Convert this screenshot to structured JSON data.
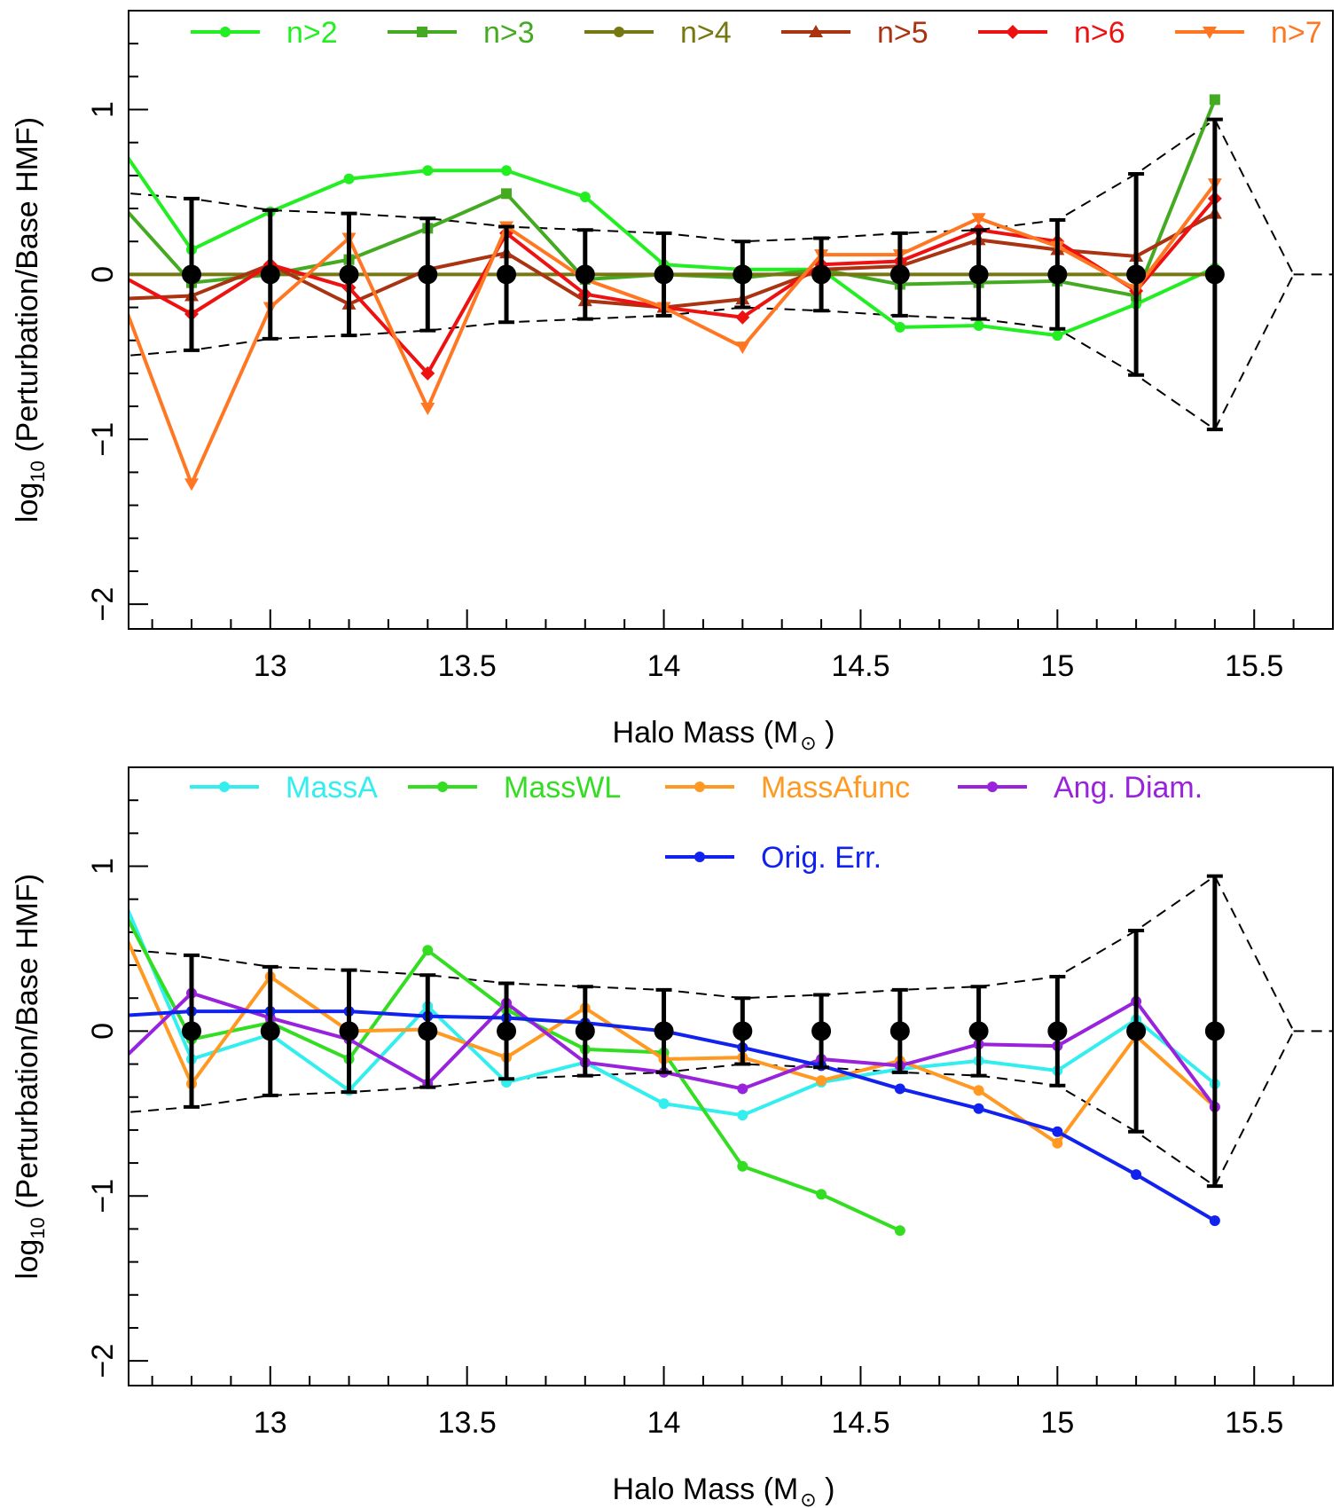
{
  "page": {
    "width": 1511,
    "height": 1700
  },
  "colors": {
    "reference": "#000000",
    "envelope": "#000000"
  },
  "chart_data": [
    {
      "type": "line",
      "id": "top",
      "xlabel": "Halo Mass (M",
      "xlabel_suffix": " )",
      "ylabel": "log",
      "ylabel_sub": "10",
      "ylabel_rest": " (Perturbation/Base HMF)",
      "xlim": [
        12.64,
        15.7
      ],
      "ylim": [
        -2.15,
        1.6
      ],
      "xticks": [
        13,
        13.5,
        14,
        14.5,
        15,
        15.5
      ],
      "xtick_labels": [
        "13",
        "13.5",
        "14",
        "14.5",
        "15",
        "15.5"
      ],
      "yticks": [
        -2,
        -1,
        0,
        1
      ],
      "ytick_labels": [
        "−2",
        "−1",
        "0",
        "1"
      ],
      "reference": {
        "x": [
          12.8,
          13.0,
          13.2,
          13.4,
          13.6,
          13.8,
          14.0,
          14.2,
          14.4,
          14.6,
          14.8,
          15.0,
          15.2,
          15.4
        ],
        "y": [
          0,
          0,
          0,
          0,
          0,
          0,
          0,
          0,
          0,
          0,
          0,
          0,
          0,
          0
        ],
        "err": [
          0.46,
          0.39,
          0.37,
          0.34,
          0.29,
          0.27,
          0.25,
          0.2,
          0.22,
          0.25,
          0.27,
          0.33,
          0.61,
          0.94
        ]
      },
      "envelope": {
        "x": [
          12.6,
          12.8,
          13.0,
          13.2,
          13.4,
          13.6,
          13.8,
          14.0,
          14.2,
          14.4,
          14.6,
          14.8,
          15.0,
          15.2,
          15.4,
          15.6
        ],
        "upper": [
          0.5,
          0.46,
          0.39,
          0.37,
          0.34,
          0.29,
          0.27,
          0.25,
          0.2,
          0.22,
          0.25,
          0.27,
          0.33,
          0.61,
          0.94,
          0.0
        ],
        "lower": [
          -0.5,
          -0.46,
          -0.39,
          -0.37,
          -0.34,
          -0.29,
          -0.27,
          -0.25,
          -0.2,
          -0.22,
          -0.25,
          -0.27,
          -0.33,
          -0.61,
          -0.94,
          0.0
        ],
        "tail_x": [
          15.6,
          15.7
        ],
        "tail_y": [
          0.0,
          0.0
        ]
      },
      "series": [
        {
          "name": "n>2",
          "color": "#22EE22",
          "marker": "circle",
          "x": [
            12.6,
            12.8,
            13.0,
            13.2,
            13.4,
            13.6,
            13.8,
            14.0,
            14.2,
            14.4,
            14.6,
            14.8,
            15.0,
            15.2,
            15.4
          ],
          "y": [
            0.84,
            0.15,
            0.38,
            0.58,
            0.63,
            0.63,
            0.47,
            0.06,
            0.03,
            0.03,
            -0.32,
            -0.31,
            -0.37,
            -0.18,
            0.04
          ]
        },
        {
          "name": "n>3",
          "color": "#44AA22",
          "marker": "square",
          "x": [
            12.6,
            12.8,
            13.0,
            13.2,
            13.4,
            13.6,
            13.8,
            14.0,
            14.2,
            14.4,
            14.6,
            14.8,
            15.0,
            15.2,
            15.4
          ],
          "y": [
            0.48,
            -0.05,
            0.0,
            0.09,
            0.28,
            0.49,
            -0.03,
            0.0,
            -0.02,
            0.03,
            -0.06,
            -0.05,
            -0.04,
            -0.13,
            1.06
          ]
        },
        {
          "name": "n>4",
          "color": "#777711",
          "marker": "circle",
          "x": [
            12.6,
            12.8,
            13.0,
            13.2,
            13.4,
            13.6,
            13.8,
            14.0,
            14.2,
            14.4,
            14.6,
            14.8,
            15.0,
            15.2,
            15.4
          ],
          "y": [
            0,
            0,
            0,
            0,
            0,
            0,
            0,
            0,
            0,
            0,
            0,
            0,
            0,
            0,
            0
          ]
        },
        {
          "name": "n>5",
          "color": "#AA3311",
          "marker": "triangle-up",
          "x": [
            12.6,
            12.8,
            13.0,
            13.2,
            13.4,
            13.6,
            13.8,
            14.0,
            14.2,
            14.4,
            14.6,
            14.8,
            15.0,
            15.2,
            15.4
          ],
          "y": [
            -0.15,
            -0.13,
            0.06,
            -0.18,
            0.03,
            0.13,
            -0.16,
            -0.2,
            -0.15,
            0.03,
            0.05,
            0.21,
            0.15,
            0.11,
            0.37
          ]
        },
        {
          "name": "n>6",
          "color": "#EE1111",
          "marker": "diamond",
          "x": [
            12.6,
            12.8,
            13.0,
            13.2,
            13.4,
            13.6,
            13.8,
            14.0,
            14.2,
            14.4,
            14.6,
            14.8,
            15.0,
            15.2,
            15.4
          ],
          "y": [
            0.02,
            -0.24,
            0.06,
            -0.08,
            -0.6,
            0.25,
            -0.12,
            -0.2,
            -0.26,
            0.06,
            0.08,
            0.27,
            0.2,
            -0.1,
            0.46
          ]
        },
        {
          "name": "n>7",
          "color": "#FF7722",
          "marker": "triangle-down",
          "x": [
            12.6,
            12.8,
            13.0,
            13.2,
            13.4,
            13.6,
            13.8,
            14.0,
            14.2,
            14.4,
            14.6,
            14.8,
            15.0,
            15.2,
            15.4
          ],
          "y": [
            0.0,
            -1.27,
            -0.2,
            0.22,
            -0.81,
            0.29,
            -0.03,
            -0.2,
            -0.44,
            0.12,
            0.12,
            0.34,
            0.17,
            -0.09,
            0.55
          ]
        }
      ],
      "legend_rows": [
        [
          "n>2",
          "n>3",
          "n>4",
          "n>5",
          "n>6",
          "n>7"
        ]
      ]
    },
    {
      "type": "line",
      "id": "bottom",
      "xlabel": "Halo Mass (M",
      "xlabel_suffix": " )",
      "ylabel": "log",
      "ylabel_sub": "10",
      "ylabel_rest": " (Perturbation/Base HMF)",
      "xlim": [
        12.64,
        15.7
      ],
      "ylim": [
        -2.15,
        1.6
      ],
      "xticks": [
        13,
        13.5,
        14,
        14.5,
        15,
        15.5
      ],
      "xtick_labels": [
        "13",
        "13.5",
        "14",
        "14.5",
        "15",
        "15.5"
      ],
      "yticks": [
        -2,
        -1,
        0,
        1
      ],
      "ytick_labels": [
        "−2",
        "−1",
        "0",
        "1"
      ],
      "reference": {
        "x": [
          12.8,
          13.0,
          13.2,
          13.4,
          13.6,
          13.8,
          14.0,
          14.2,
          14.4,
          14.6,
          14.8,
          15.0,
          15.2,
          15.4
        ],
        "y": [
          0,
          0,
          0,
          0,
          0,
          0,
          0,
          0,
          0,
          0,
          0,
          0,
          0,
          0
        ],
        "err": [
          0.46,
          0.39,
          0.37,
          0.34,
          0.29,
          0.27,
          0.25,
          0.2,
          0.22,
          0.25,
          0.27,
          0.33,
          0.61,
          0.94
        ]
      },
      "envelope": {
        "x": [
          12.6,
          12.8,
          13.0,
          13.2,
          13.4,
          13.6,
          13.8,
          14.0,
          14.2,
          14.4,
          14.6,
          14.8,
          15.0,
          15.2,
          15.4,
          15.6
        ],
        "upper": [
          0.5,
          0.46,
          0.39,
          0.37,
          0.34,
          0.29,
          0.27,
          0.25,
          0.2,
          0.22,
          0.25,
          0.27,
          0.33,
          0.61,
          0.94,
          0.0
        ],
        "lower": [
          -0.5,
          -0.46,
          -0.39,
          -0.37,
          -0.34,
          -0.29,
          -0.27,
          -0.25,
          -0.2,
          -0.22,
          -0.25,
          -0.27,
          -0.33,
          -0.61,
          -0.94,
          0.0
        ],
        "tail_x": [
          15.6,
          15.7
        ],
        "tail_y": [
          0.0,
          0.0
        ]
      },
      "series": [
        {
          "name": "MassA",
          "color": "#33EEEE",
          "marker": "circle",
          "x": [
            12.6,
            12.8,
            13.0,
            13.2,
            13.4,
            13.6,
            13.8,
            14.0,
            14.2,
            14.4,
            14.6,
            14.8,
            15.0,
            15.2,
            15.4
          ],
          "y": [
            0.95,
            -0.17,
            -0.02,
            -0.36,
            0.15,
            -0.31,
            -0.19,
            -0.44,
            -0.51,
            -0.31,
            -0.23,
            -0.18,
            -0.24,
            0.07,
            -0.32
          ]
        },
        {
          "name": "MassWL",
          "color": "#33DD22",
          "marker": "circle",
          "x": [
            12.6,
            12.8,
            13.0,
            13.2,
            13.4,
            13.6,
            13.8,
            14.0,
            14.2,
            14.4,
            14.6
          ],
          "y": [
            0.85,
            -0.05,
            0.05,
            -0.17,
            0.49,
            0.13,
            -0.11,
            -0.13,
            -0.82,
            -0.99,
            -1.21
          ]
        },
        {
          "name": "MassAfunc",
          "color": "#FF9922",
          "marker": "circle",
          "x": [
            12.6,
            12.8,
            13.0,
            13.2,
            13.4,
            13.6,
            13.8,
            14.0,
            14.2,
            14.4,
            14.6,
            14.8,
            15.0,
            15.2,
            15.4
          ],
          "y": [
            0.75,
            -0.32,
            0.33,
            0.0,
            0.01,
            -0.16,
            0.14,
            -0.17,
            -0.16,
            -0.3,
            -0.18,
            -0.36,
            -0.68,
            -0.03,
            -0.46
          ]
        },
        {
          "name": "Ang. Diam.",
          "color": "#9922DD",
          "marker": "circle",
          "x": [
            12.6,
            12.8,
            13.0,
            13.2,
            13.4,
            13.6,
            13.8,
            14.0,
            14.2,
            14.4,
            14.6,
            14.8,
            15.0,
            15.2,
            15.4
          ],
          "y": [
            -0.23,
            0.23,
            0.08,
            -0.05,
            -0.32,
            0.17,
            -0.19,
            -0.25,
            -0.35,
            -0.17,
            -0.21,
            -0.08,
            -0.09,
            0.18,
            -0.46
          ]
        },
        {
          "name": "Orig. Err.",
          "color": "#1122EE",
          "marker": "circle",
          "x": [
            12.6,
            12.8,
            13.0,
            13.2,
            13.4,
            13.6,
            13.8,
            14.0,
            14.2,
            14.4,
            14.6,
            14.8,
            15.0,
            15.2,
            15.4
          ],
          "y": [
            0.09,
            0.12,
            0.12,
            0.12,
            0.09,
            0.08,
            0.05,
            0.0,
            -0.1,
            -0.21,
            -0.35,
            -0.47,
            -0.61,
            -0.87,
            -1.15
          ]
        }
      ],
      "legend_rows": [
        [
          "MassA",
          "MassWL",
          "MassAfunc",
          "Ang. Diam."
        ],
        [
          "Orig. Err."
        ]
      ]
    }
  ]
}
